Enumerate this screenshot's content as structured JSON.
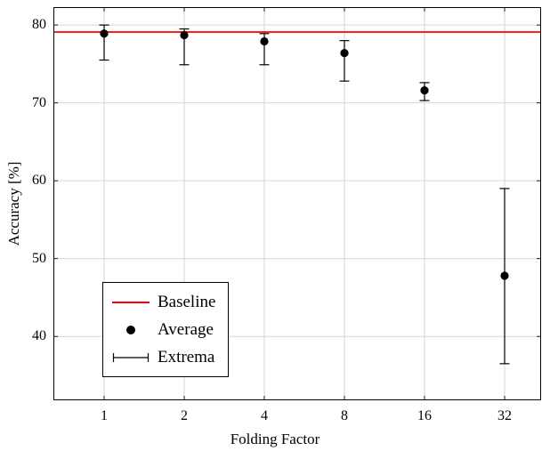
{
  "chart_data": {
    "type": "scatter",
    "title": "",
    "xlabel": "Folding Factor",
    "ylabel": "Accuracy [%]",
    "categories": [
      "1",
      "2",
      "4",
      "8",
      "16",
      "32"
    ],
    "yticks": [
      40,
      50,
      60,
      70,
      80
    ],
    "ylim": [
      31.8,
      82.3
    ],
    "grid": true,
    "legend_position": "lower-left",
    "legend": [
      "Baseline",
      "Average",
      "Extrema"
    ],
    "baseline": 79.1,
    "baseline_color": "#ff0000",
    "series": [
      {
        "name": "Average",
        "values": [
          78.9,
          78.7,
          77.9,
          76.4,
          71.6,
          47.8
        ]
      },
      {
        "name": "Extrema-min",
        "values": [
          75.5,
          74.9,
          74.9,
          72.8,
          70.3,
          36.5
        ]
      },
      {
        "name": "Extrema-max",
        "values": [
          80.0,
          79.5,
          78.9,
          78.0,
          72.6,
          59.0
        ]
      }
    ]
  }
}
